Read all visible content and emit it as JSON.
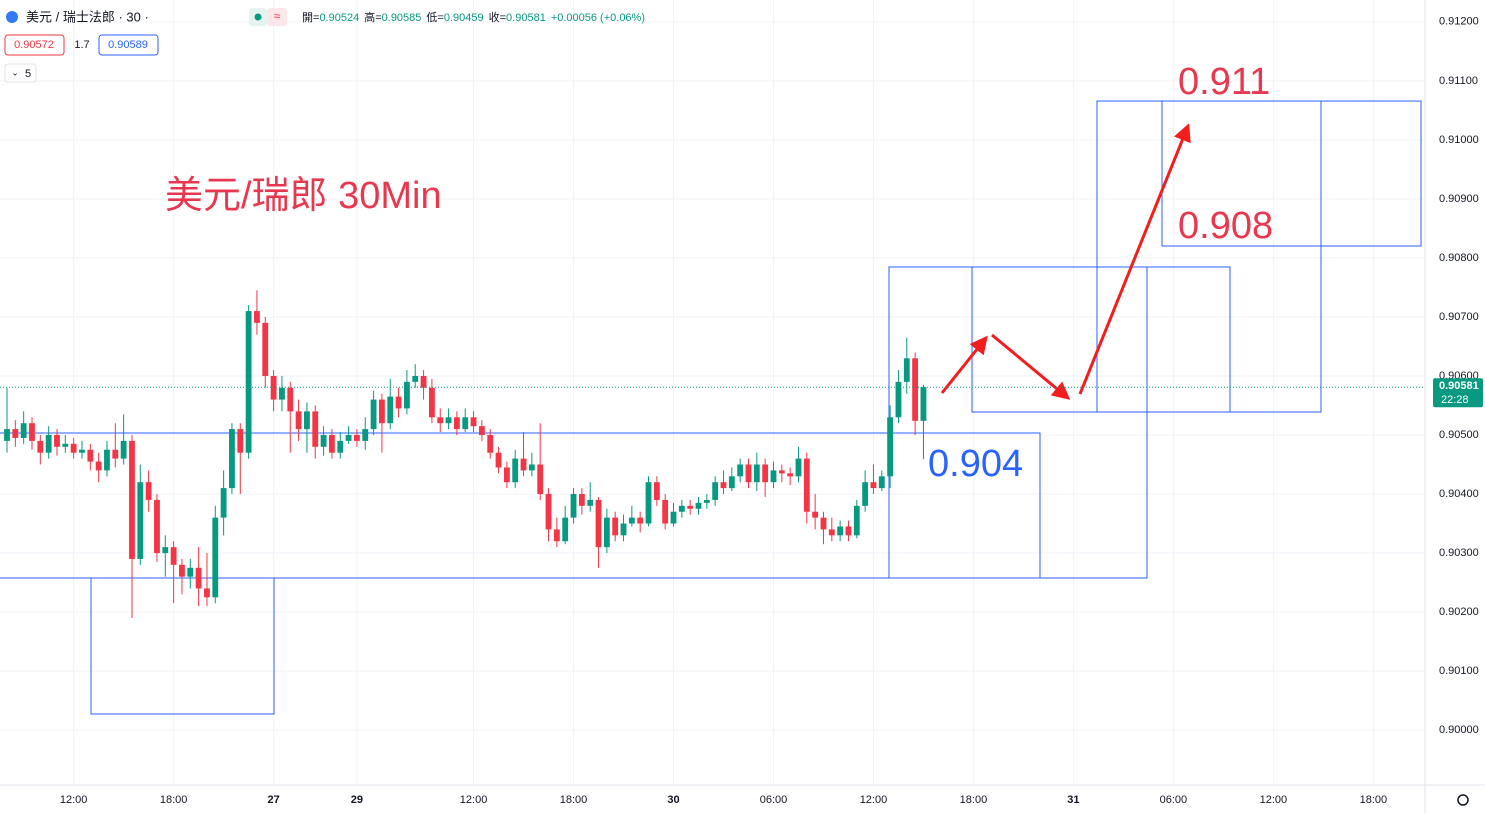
{
  "header": {
    "symbol": "美元 / 瑞士法郎 · 30 ·",
    "ohlc": [
      {
        "label": "開=",
        "value": "0.90524"
      },
      {
        "label": "高=",
        "value": "0.90585"
      },
      {
        "label": "低=",
        "value": "0.90459"
      },
      {
        "label": "收=",
        "value": "0.90581"
      },
      {
        "label": "",
        "value": "+0.00056 (+0.06%)"
      }
    ],
    "bid": "0.90572",
    "spread": "1.7",
    "ask": "0.90589",
    "indicators": "5"
  },
  "chart_data": {
    "type": "candlestick",
    "title": "美元/瑞郎 30Min",
    "open": [
      0.9049,
      0.9051,
      0.90495,
      0.9052,
      0.9049,
      0.9047,
      0.905,
      0.9048,
      0.90485,
      0.9047,
      0.90475,
      0.90455,
      0.9044,
      0.90475,
      0.9046,
      0.9049,
      0.9029,
      0.9042,
      0.9039,
      0.903,
      0.9031,
      0.9028,
      0.9026,
      0.90275,
      0.9024,
      0.90225,
      0.9036,
      0.9041,
      0.9051,
      0.9047,
      0.9071,
      0.9069,
      0.906,
      0.9056,
      0.9058,
      0.9054,
      0.9051,
      0.9054,
      0.9048,
      0.905,
      0.9047,
      0.9049,
      0.905,
      0.9049,
      0.9051,
      0.9056,
      0.9052,
      0.90565,
      0.90545,
      0.9059,
      0.906,
      0.9058,
      0.9053,
      0.9052,
      0.9053,
      0.9051,
      0.9053,
      0.90515,
      0.905,
      0.9047,
      0.90445,
      0.9042,
      0.9046,
      0.9044,
      0.9045,
      0.904,
      0.9034,
      0.9032,
      0.9036,
      0.904,
      0.9038,
      0.9039,
      0.9031,
      0.9036,
      0.9033,
      0.9035,
      0.9036,
      0.9035,
      0.9042,
      0.9039,
      0.9035,
      0.9037,
      0.9038,
      0.90375,
      0.90385,
      0.9039,
      0.9042,
      0.9041,
      0.9043,
      0.9045,
      0.9042,
      0.9045,
      0.9042,
      0.9044,
      0.90435,
      0.9043,
      0.9046,
      0.9037,
      0.9036,
      0.9034,
      0.9033,
      0.90345,
      0.9033,
      0.9038,
      0.9042,
      0.9041,
      0.9043,
      0.9053,
      0.9059,
      0.9063,
      0.90524
    ],
    "high": [
      0.9058,
      0.90525,
      0.9054,
      0.9053,
      0.905,
      0.90515,
      0.9051,
      0.905,
      0.90495,
      0.9049,
      0.90485,
      0.9047,
      0.9049,
      0.9052,
      0.90535,
      0.905,
      0.9045,
      0.9044,
      0.904,
      0.9033,
      0.9032,
      0.9029,
      0.9029,
      0.9031,
      0.903,
      0.9038,
      0.9044,
      0.9052,
      0.9052,
      0.9072,
      0.90745,
      0.907,
      0.9061,
      0.906,
      0.9059,
      0.9056,
      0.90555,
      0.9055,
      0.90515,
      0.9051,
      0.90505,
      0.90515,
      0.9051,
      0.9053,
      0.90575,
      0.9057,
      0.90595,
      0.9058,
      0.9061,
      0.9062,
      0.9061,
      0.90595,
      0.90545,
      0.90545,
      0.9054,
      0.90545,
      0.9054,
      0.90525,
      0.9051,
      0.9048,
      0.90455,
      0.90475,
      0.90505,
      0.9047,
      0.9052,
      0.9041,
      0.9036,
      0.9038,
      0.9041,
      0.9041,
      0.9042,
      0.90395,
      0.90375,
      0.9037,
      0.90365,
      0.9038,
      0.9037,
      0.9043,
      0.9043,
      0.904,
      0.90385,
      0.9039,
      0.9039,
      0.90395,
      0.904,
      0.9043,
      0.9044,
      0.90445,
      0.9046,
      0.9046,
      0.9047,
      0.9046,
      0.90455,
      0.9045,
      0.90445,
      0.9048,
      0.9047,
      0.904,
      0.9037,
      0.9036,
      0.90355,
      0.90355,
      0.9039,
      0.9044,
      0.9045,
      0.9044,
      0.9055,
      0.9061,
      0.90665,
      0.9064,
      0.90585
    ],
    "low": [
      0.9047,
      0.9048,
      0.90485,
      0.90475,
      0.9045,
      0.9046,
      0.90465,
      0.9047,
      0.9046,
      0.9046,
      0.9044,
      0.9042,
      0.9043,
      0.90445,
      0.9045,
      0.9019,
      0.9028,
      0.9037,
      0.90285,
      0.9026,
      0.90215,
      0.9023,
      0.9024,
      0.9021,
      0.9021,
      0.90215,
      0.9033,
      0.904,
      0.904,
      0.9046,
      0.9067,
      0.9058,
      0.9054,
      0.9054,
      0.9047,
      0.9049,
      0.9047,
      0.9046,
      0.90465,
      0.9046,
      0.9046,
      0.90485,
      0.9048,
      0.90475,
      0.905,
      0.9047,
      0.9051,
      0.9053,
      0.90535,
      0.9058,
      0.9056,
      0.9052,
      0.90505,
      0.9051,
      0.905,
      0.90505,
      0.90505,
      0.9049,
      0.9046,
      0.90435,
      0.9041,
      0.9041,
      0.9043,
      0.9043,
      0.9039,
      0.9032,
      0.9031,
      0.90315,
      0.9035,
      0.90365,
      0.9037,
      0.90275,
      0.903,
      0.9032,
      0.9032,
      0.90345,
      0.90335,
      0.90345,
      0.9038,
      0.9034,
      0.90345,
      0.9036,
      0.90365,
      0.90365,
      0.90375,
      0.9038,
      0.904,
      0.90405,
      0.9042,
      0.9041,
      0.90405,
      0.90395,
      0.9041,
      0.9042,
      0.90415,
      0.9042,
      0.9035,
      0.9034,
      0.90315,
      0.9032,
      0.9032,
      0.9032,
      0.90325,
      0.9037,
      0.904,
      0.90405,
      0.9041,
      0.9052,
      0.9057,
      0.905,
      0.90459
    ],
    "close": [
      0.9051,
      0.90495,
      0.9052,
      0.9049,
      0.9047,
      0.905,
      0.9048,
      0.90485,
      0.9047,
      0.90475,
      0.90455,
      0.9044,
      0.90475,
      0.9046,
      0.9049,
      0.9029,
      0.9042,
      0.9039,
      0.903,
      0.9031,
      0.9028,
      0.9026,
      0.90275,
      0.9024,
      0.90225,
      0.9036,
      0.9041,
      0.9051,
      0.9047,
      0.9071,
      0.9069,
      0.906,
      0.9056,
      0.9058,
      0.9054,
      0.9051,
      0.9054,
      0.9048,
      0.905,
      0.9047,
      0.9049,
      0.905,
      0.9049,
      0.9051,
      0.9056,
      0.9052,
      0.90565,
      0.90545,
      0.9059,
      0.906,
      0.9058,
      0.9053,
      0.9052,
      0.9053,
      0.9051,
      0.9053,
      0.90515,
      0.905,
      0.9047,
      0.90445,
      0.9042,
      0.9046,
      0.9044,
      0.9045,
      0.904,
      0.9034,
      0.9032,
      0.9036,
      0.904,
      0.9038,
      0.9039,
      0.9031,
      0.9036,
      0.9033,
      0.9035,
      0.9036,
      0.9035,
      0.9042,
      0.9039,
      0.9035,
      0.9037,
      0.9038,
      0.90375,
      0.90385,
      0.9039,
      0.9042,
      0.9041,
      0.9043,
      0.9045,
      0.9042,
      0.9045,
      0.9042,
      0.9044,
      0.90435,
      0.9043,
      0.9046,
      0.9037,
      0.9036,
      0.9034,
      0.9033,
      0.90345,
      0.9033,
      0.9038,
      0.9042,
      0.9041,
      0.9043,
      0.9053,
      0.9059,
      0.9063,
      0.90524,
      0.90581
    ],
    "up_color": "#089981",
    "down_color": "#f23645",
    "xlim": [
      -0.84,
      170.2
    ],
    "xticks": [
      {
        "value": 8,
        "label": "12:00"
      },
      {
        "value": 20,
        "label": "18:00"
      },
      {
        "value": 32,
        "label": "27"
      },
      {
        "value": 42,
        "label": "29"
      },
      {
        "value": 56,
        "label": "12:00"
      },
      {
        "value": 68,
        "label": "18:00"
      },
      {
        "value": 80,
        "label": "30"
      },
      {
        "value": 92,
        "label": "06:00"
      },
      {
        "value": 104,
        "label": "12:00"
      },
      {
        "value": 116,
        "label": "18:00"
      },
      {
        "value": 128,
        "label": "31"
      },
      {
        "value": 140,
        "label": "06:00"
      },
      {
        "value": 152,
        "label": "12:00"
      },
      {
        "value": 164,
        "label": "18:00"
      }
    ],
    "ylim": [
      0.89907,
      0.91237
    ],
    "yticks": [
      {
        "value": 0.9,
        "label": "0.90000"
      },
      {
        "value": 0.901,
        "label": "0.90100"
      },
      {
        "value": 0.902,
        "label": "0.90200"
      },
      {
        "value": 0.903,
        "label": "0.90300"
      },
      {
        "value": 0.904,
        "label": "0.90400"
      },
      {
        "value": 0.905,
        "label": "0.90500"
      },
      {
        "value": 0.906,
        "label": "0.90600"
      },
      {
        "value": 0.907,
        "label": "0.90700"
      },
      {
        "value": 0.908,
        "label": "0.90800"
      },
      {
        "value": 0.909,
        "label": "0.90900"
      },
      {
        "value": 0.91,
        "label": "0.91000"
      },
      {
        "value": 0.911,
        "label": "0.91100"
      },
      {
        "value": 0.912,
        "label": "0.91200"
      }
    ],
    "grid": true,
    "last_price_label": "0.90581",
    "countdown": "22:28",
    "annotations": [
      "0.911",
      "0.908",
      "0.904"
    ]
  }
}
